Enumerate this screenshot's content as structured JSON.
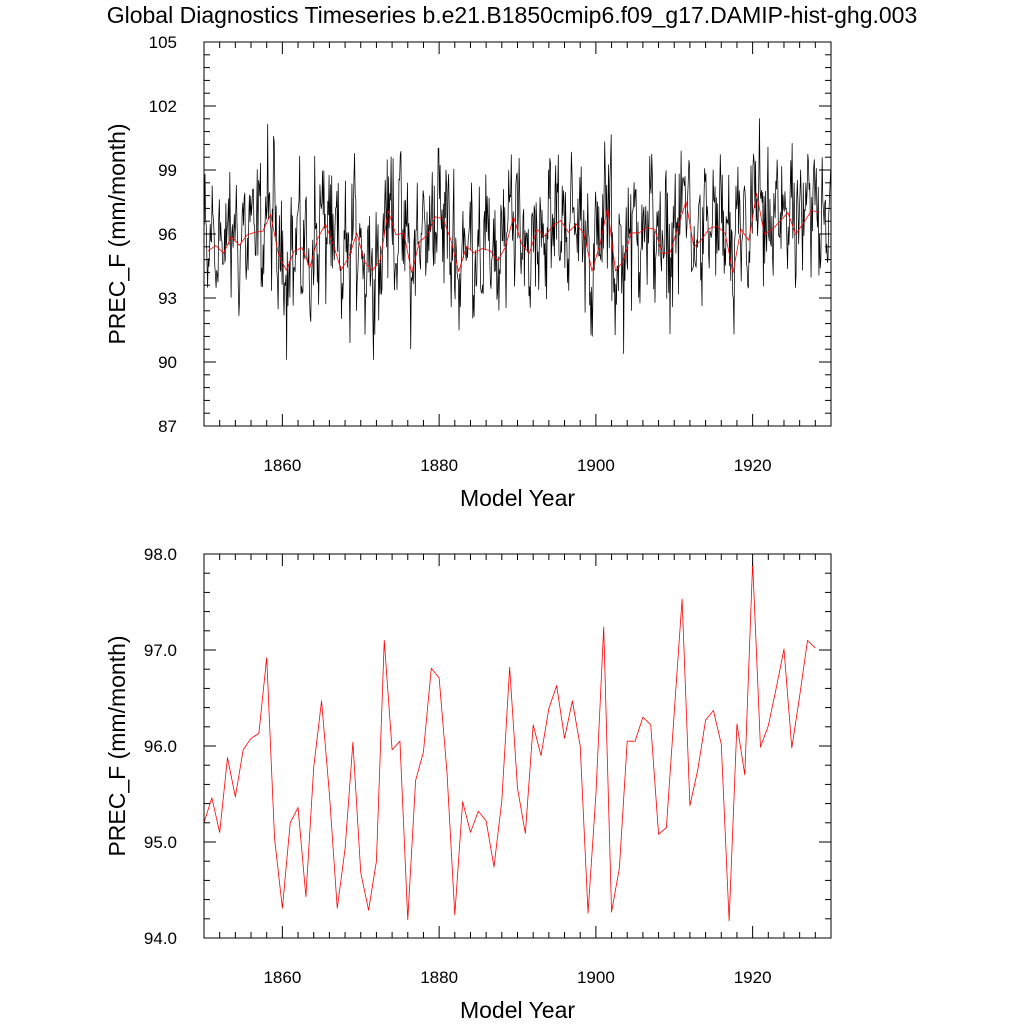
{
  "page": {
    "title": "Global Diagnostics Timeseries b.e21.B1850cmip6.f09_g17.DAMIP-hist-ghg.003"
  },
  "colors": {
    "monthly": "#000000",
    "annual": "#ff0000",
    "axes": "#000000"
  },
  "chart_data": [
    {
      "type": "line",
      "title": "Global Diagnostics Timeseries b.e21.B1850cmip6.f09_g17.DAMIP-hist-ghg.003",
      "xlabel": "Model Year",
      "ylabel": "PREC_F (mm/month)",
      "xlim": [
        1850,
        1930
      ],
      "ylim": [
        87,
        105
      ],
      "xticks": [
        1860,
        1880,
        1900,
        1920
      ],
      "xtick_labels": [
        "1860",
        "1880",
        "1900",
        "1920"
      ],
      "yticks": [
        87,
        90,
        93,
        96,
        99,
        102,
        105
      ],
      "ytick_labels": [
        "87",
        "90",
        "93",
        "96",
        "99",
        "102",
        "105"
      ],
      "grid": false,
      "series": [
        {
          "color": "#000000",
          "monthly_base": [
            96.2,
            96.6,
            96.0,
            95.3,
            94.6,
            94.2,
            94.0,
            94.3,
            95.0,
            95.9,
            96.6,
            96.4
          ],
          "annual_means": [
            95.2,
            95.46,
            95.1,
            95.88,
            95.47,
            95.96,
            96.08,
            96.13,
            96.92,
            95.04,
            94.31,
            95.2,
            95.36,
            94.43,
            95.78,
            96.47,
            95.5,
            94.31,
            94.93,
            96.04,
            94.68,
            94.29,
            94.8,
            97.1,
            95.96,
            96.05,
            94.19,
            95.64,
            95.94,
            96.81,
            96.71,
            95.73,
            94.24,
            95.42,
            95.1,
            95.32,
            95.22,
            94.74,
            95.43,
            96.82,
            95.56,
            95.09,
            96.22,
            95.9,
            96.39,
            96.63,
            96.08,
            96.47,
            96.0,
            94.26,
            95.49,
            97.24,
            94.27,
            94.73,
            96.05,
            96.05,
            96.3,
            96.22,
            95.08,
            95.15,
            96.35,
            97.53,
            95.38,
            95.75,
            96.27,
            96.37,
            96.02,
            94.18,
            96.23,
            95.7,
            97.91,
            95.99,
            96.21,
            96.6,
            97.01,
            95.98,
            96.52,
            97.1,
            97.02
          ],
          "noise_amplitude": 2.6
        },
        {
          "color": "#ff0000",
          "x_start": 1850.5,
          "values": [
            95.2,
            95.46,
            95.1,
            95.88,
            95.47,
            95.96,
            96.08,
            96.13,
            96.92,
            95.04,
            94.31,
            95.2,
            95.36,
            94.43,
            95.78,
            96.47,
            95.5,
            94.31,
            94.93,
            96.04,
            94.68,
            94.29,
            94.8,
            97.1,
            95.96,
            96.05,
            94.19,
            95.64,
            95.94,
            96.81,
            96.71,
            95.73,
            94.24,
            95.42,
            95.1,
            95.32,
            95.22,
            94.74,
            95.43,
            96.82,
            95.56,
            95.09,
            96.22,
            95.9,
            96.39,
            96.63,
            96.08,
            96.47,
            96.0,
            94.26,
            95.49,
            97.24,
            94.27,
            94.73,
            96.05,
            96.05,
            96.3,
            96.22,
            95.08,
            95.15,
            96.35,
            97.53,
            95.38,
            95.75,
            96.27,
            96.37,
            96.02,
            94.18,
            96.23,
            95.7,
            97.91,
            95.99,
            96.21,
            96.6,
            97.01,
            95.98,
            96.52,
            97.1,
            97.02
          ]
        }
      ]
    },
    {
      "type": "line",
      "title": "",
      "xlabel": "Model Year",
      "ylabel": "PREC_F (mm/month)",
      "xlim": [
        1850,
        1930
      ],
      "ylim": [
        94.0,
        98.0
      ],
      "xticks": [
        1860,
        1880,
        1900,
        1920
      ],
      "xtick_labels": [
        "1860",
        "1880",
        "1900",
        "1920"
      ],
      "yticks": [
        94.0,
        95.0,
        96.0,
        97.0,
        98.0
      ],
      "ytick_labels": [
        "94.0",
        "95.0",
        "96.0",
        "97.0",
        "98.0"
      ],
      "grid": false,
      "series": [
        {
          "color": "#ff0000",
          "x_start": 1850,
          "values": [
            95.2,
            95.46,
            95.1,
            95.88,
            95.47,
            95.96,
            96.08,
            96.13,
            96.92,
            95.04,
            94.31,
            95.2,
            95.36,
            94.43,
            95.78,
            96.47,
            95.5,
            94.31,
            94.93,
            96.04,
            94.68,
            94.29,
            94.8,
            97.1,
            95.96,
            96.05,
            94.19,
            95.64,
            95.94,
            96.81,
            96.71,
            95.73,
            94.24,
            95.42,
            95.1,
            95.32,
            95.22,
            94.74,
            95.43,
            96.82,
            95.56,
            95.09,
            96.22,
            95.9,
            96.39,
            96.63,
            96.08,
            96.47,
            96.0,
            94.26,
            95.49,
            97.24,
            94.27,
            94.73,
            96.05,
            96.05,
            96.3,
            96.22,
            95.08,
            95.15,
            96.35,
            97.53,
            95.38,
            95.75,
            96.27,
            96.37,
            96.02,
            94.18,
            96.23,
            95.7,
            97.91,
            95.99,
            96.21,
            96.6,
            97.01,
            95.98,
            96.52,
            97.1,
            97.02
          ]
        }
      ]
    }
  ]
}
